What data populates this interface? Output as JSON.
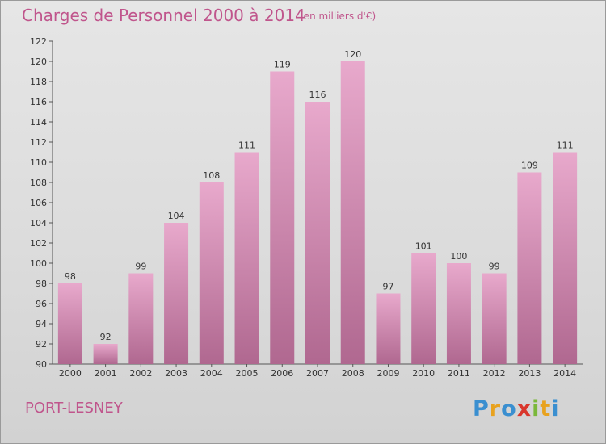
{
  "header": {
    "title": "Charges de Personnel 2000 à 2014",
    "subtitle": "(en milliers d'€)"
  },
  "footer": {
    "town": "PORT-LESNEY",
    "logo": "Proxiti"
  },
  "colors": {
    "title": "#c0558c",
    "bar_top": "#e8a9cc",
    "bar_bottom": "#b06890",
    "logo": [
      "#3a8fd0",
      "#e8a21e",
      "#3a8fd0",
      "#d9362c",
      "#7ab83a",
      "#e8a21e",
      "#3a8fd0"
    ]
  },
  "chart_data": {
    "type": "bar",
    "categories": [
      "2000",
      "2001",
      "2002",
      "2003",
      "2004",
      "2005",
      "2006",
      "2007",
      "2008",
      "2009",
      "2010",
      "2011",
      "2012",
      "2013",
      "2014"
    ],
    "values": [
      98,
      92,
      99,
      104,
      108,
      111,
      119,
      116,
      120,
      97,
      101,
      100,
      99,
      109,
      111
    ],
    "data_labels": [
      "98",
      "92",
      "99",
      "104",
      "108",
      "111",
      "119",
      "116",
      "120",
      "97",
      "101",
      "100",
      "99",
      "109",
      "111"
    ],
    "ylim": [
      90,
      122
    ],
    "yticks": [
      "90",
      "92",
      "94",
      "96",
      "98",
      "100",
      "102",
      "104",
      "106",
      "108",
      "110",
      "112",
      "114",
      "116",
      "118",
      "120",
      "122"
    ],
    "grid": false,
    "legend": "none"
  }
}
